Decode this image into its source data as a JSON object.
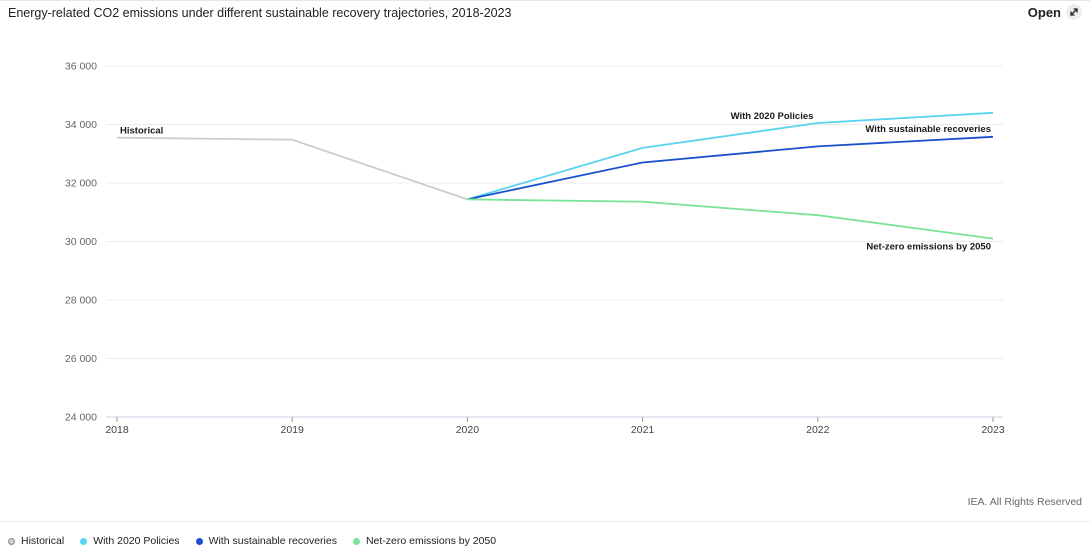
{
  "header": {
    "title": "Energy-related CO2 emissions under different sustainable recovery trajectories, 2018-2023",
    "open_label": "Open"
  },
  "credit": "IEA. All Rights Reserved",
  "colors": {
    "historical": "#cccccc",
    "with_2020_policies": "#5ad3f0",
    "with_sustainable_recoveries": "#1a50cc",
    "net_zero": "#7be39a"
  },
  "chart_data": {
    "type": "line",
    "title": "Energy-related CO2 emissions under different sustainable recovery trajectories, 2018-2023",
    "xlabel": "",
    "ylabel": "",
    "x": [
      "2018",
      "2019",
      "2020",
      "2021",
      "2022",
      "2023"
    ],
    "ylim": [
      24000,
      36000
    ],
    "yticks": [
      "24 000",
      "26 000",
      "28 000",
      "30 000",
      "32 000",
      "34 000",
      "36 000"
    ],
    "grid": true,
    "legend_position": "bottom-left",
    "series": [
      {
        "name": "Historical",
        "x": [
          "2018",
          "2019",
          "2020"
        ],
        "values": [
          33550,
          33480,
          31440
        ]
      },
      {
        "name": "With 2020 Policies",
        "x": [
          "2020",
          "2021",
          "2022",
          "2023"
        ],
        "values": [
          31440,
          33200,
          34050,
          34400
        ]
      },
      {
        "name": "With sustainable recoveries",
        "x": [
          "2020",
          "2021",
          "2022",
          "2023"
        ],
        "values": [
          31440,
          32700,
          33250,
          33580
        ]
      },
      {
        "name": "Net-zero emissions by 2050",
        "x": [
          "2020",
          "2021",
          "2022",
          "2023"
        ],
        "values": [
          31440,
          31360,
          30900,
          30100
        ]
      }
    ],
    "legend": [
      "Historical",
      "With 2020 Policies",
      "With sustainable recoveries",
      "Net-zero emissions by 2050"
    ]
  }
}
